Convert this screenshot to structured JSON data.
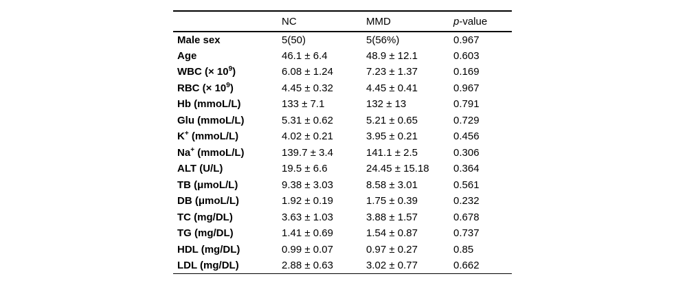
{
  "table": {
    "header": {
      "col0": "",
      "nc": "NC",
      "mmd": "MMD",
      "p_italic": "p",
      "p_rest": "-value"
    },
    "rows": [
      {
        "label_pre": "Male sex",
        "sup": "",
        "label_post": "",
        "nc": "5(50)",
        "mmd": "5(56%)",
        "p": "0.967"
      },
      {
        "label_pre": "Age",
        "sup": "",
        "label_post": "",
        "nc": "46.1 ± 6.4",
        "mmd": "48.9 ± 12.1",
        "p": "0.603"
      },
      {
        "label_pre": "WBC (× 10",
        "sup": "9",
        "label_post": ")",
        "nc": "6.08 ± 1.24",
        "mmd": "7.23 ± 1.37",
        "p": "0.169"
      },
      {
        "label_pre": "RBC (× 10",
        "sup": "9",
        "label_post": ")",
        "nc": "4.45 ± 0.32",
        "mmd": "4.45 ± 0.41",
        "p": "0.967"
      },
      {
        "label_pre": "Hb (mmoL/L)",
        "sup": "",
        "label_post": "",
        "nc": "133 ± 7.1",
        "mmd": "132 ± 13",
        "p": "0.791"
      },
      {
        "label_pre": "Glu (mmoL/L)",
        "sup": "",
        "label_post": "",
        "nc": "5.31 ± 0.62",
        "mmd": "5.21 ± 0.65",
        "p": "0.729"
      },
      {
        "label_pre": "K",
        "sup": "+",
        "label_post": " (mmoL/L)",
        "nc": "4.02 ± 0.21",
        "mmd": "3.95 ± 0.21",
        "p": "0.456"
      },
      {
        "label_pre": "Na",
        "sup": "+",
        "label_post": " (mmoL/L)",
        "nc": "139.7 ± 3.4",
        "mmd": "141.1 ± 2.5",
        "p": "0.306"
      },
      {
        "label_pre": "ALT (U/L)",
        "sup": "",
        "label_post": "",
        "nc": "19.5 ± 6.6",
        "mmd": "24.45 ± 15.18",
        "p": "0.364"
      },
      {
        "label_pre": "TB (μmoL/L)",
        "sup": "",
        "label_post": "",
        "nc": "9.38 ± 3.03",
        "mmd": "8.58 ± 3.01",
        "p": "0.561"
      },
      {
        "label_pre": "DB (μmoL/L)",
        "sup": "",
        "label_post": "",
        "nc": "1.92 ± 0.19",
        "mmd": "1.75 ± 0.39",
        "p": "0.232"
      },
      {
        "label_pre": "TC (mg/DL)",
        "sup": "",
        "label_post": "",
        "nc": "3.63 ± 1.03",
        "mmd": "3.88 ± 1.57",
        "p": "0.678"
      },
      {
        "label_pre": "TG (mg/DL)",
        "sup": "",
        "label_post": "",
        "nc": "1.41 ± 0.69",
        "mmd": "1.54 ± 0.87",
        "p": "0.737"
      },
      {
        "label_pre": "HDL (mg/DL)",
        "sup": "",
        "label_post": "",
        "nc": "0.99 ± 0.07",
        "mmd": "0.97 ± 0.27",
        "p": "0.85"
      },
      {
        "label_pre": "LDL (mg/DL)",
        "sup": "",
        "label_post": "",
        "nc": "2.88 ± 0.63",
        "mmd": "3.02 ± 0.77",
        "p": "0.662"
      }
    ]
  },
  "chart_data": {
    "type": "table",
    "columns": [
      "",
      "NC",
      "MMD",
      "p-value"
    ],
    "rows": [
      [
        "Male sex",
        "5(50)",
        "5(56%)",
        "0.967"
      ],
      [
        "Age",
        "46.1 ± 6.4",
        "48.9 ± 12.1",
        "0.603"
      ],
      [
        "WBC (× 10^9)",
        "6.08 ± 1.24",
        "7.23 ± 1.37",
        "0.169"
      ],
      [
        "RBC (× 10^9)",
        "4.45 ± 0.32",
        "4.45 ± 0.41",
        "0.967"
      ],
      [
        "Hb (mmoL/L)",
        "133 ± 7.1",
        "132 ± 13",
        "0.791"
      ],
      [
        "Glu (mmoL/L)",
        "5.31 ± 0.62",
        "5.21 ± 0.65",
        "0.729"
      ],
      [
        "K+ (mmoL/L)",
        "4.02 ± 0.21",
        "3.95 ± 0.21",
        "0.456"
      ],
      [
        "Na+ (mmoL/L)",
        "139.7 ± 3.4",
        "141.1 ± 2.5",
        "0.306"
      ],
      [
        "ALT (U/L)",
        "19.5 ± 6.6",
        "24.45 ± 15.18",
        "0.364"
      ],
      [
        "TB (μmoL/L)",
        "9.38 ± 3.03",
        "8.58 ± 3.01",
        "0.561"
      ],
      [
        "DB (μmoL/L)",
        "1.92 ± 0.19",
        "1.75 ± 0.39",
        "0.232"
      ],
      [
        "TC (mg/DL)",
        "3.63 ± 1.03",
        "3.88 ± 1.57",
        "0.678"
      ],
      [
        "TG (mg/DL)",
        "1.41 ± 0.69",
        "1.54 ± 0.87",
        "0.737"
      ],
      [
        "HDL (mg/DL)",
        "0.99 ± 0.07",
        "0.97 ± 0.27",
        "0.85"
      ],
      [
        "LDL (mg/DL)",
        "2.88 ± 0.63",
        "3.02 ± 0.77",
        "0.662"
      ]
    ]
  }
}
